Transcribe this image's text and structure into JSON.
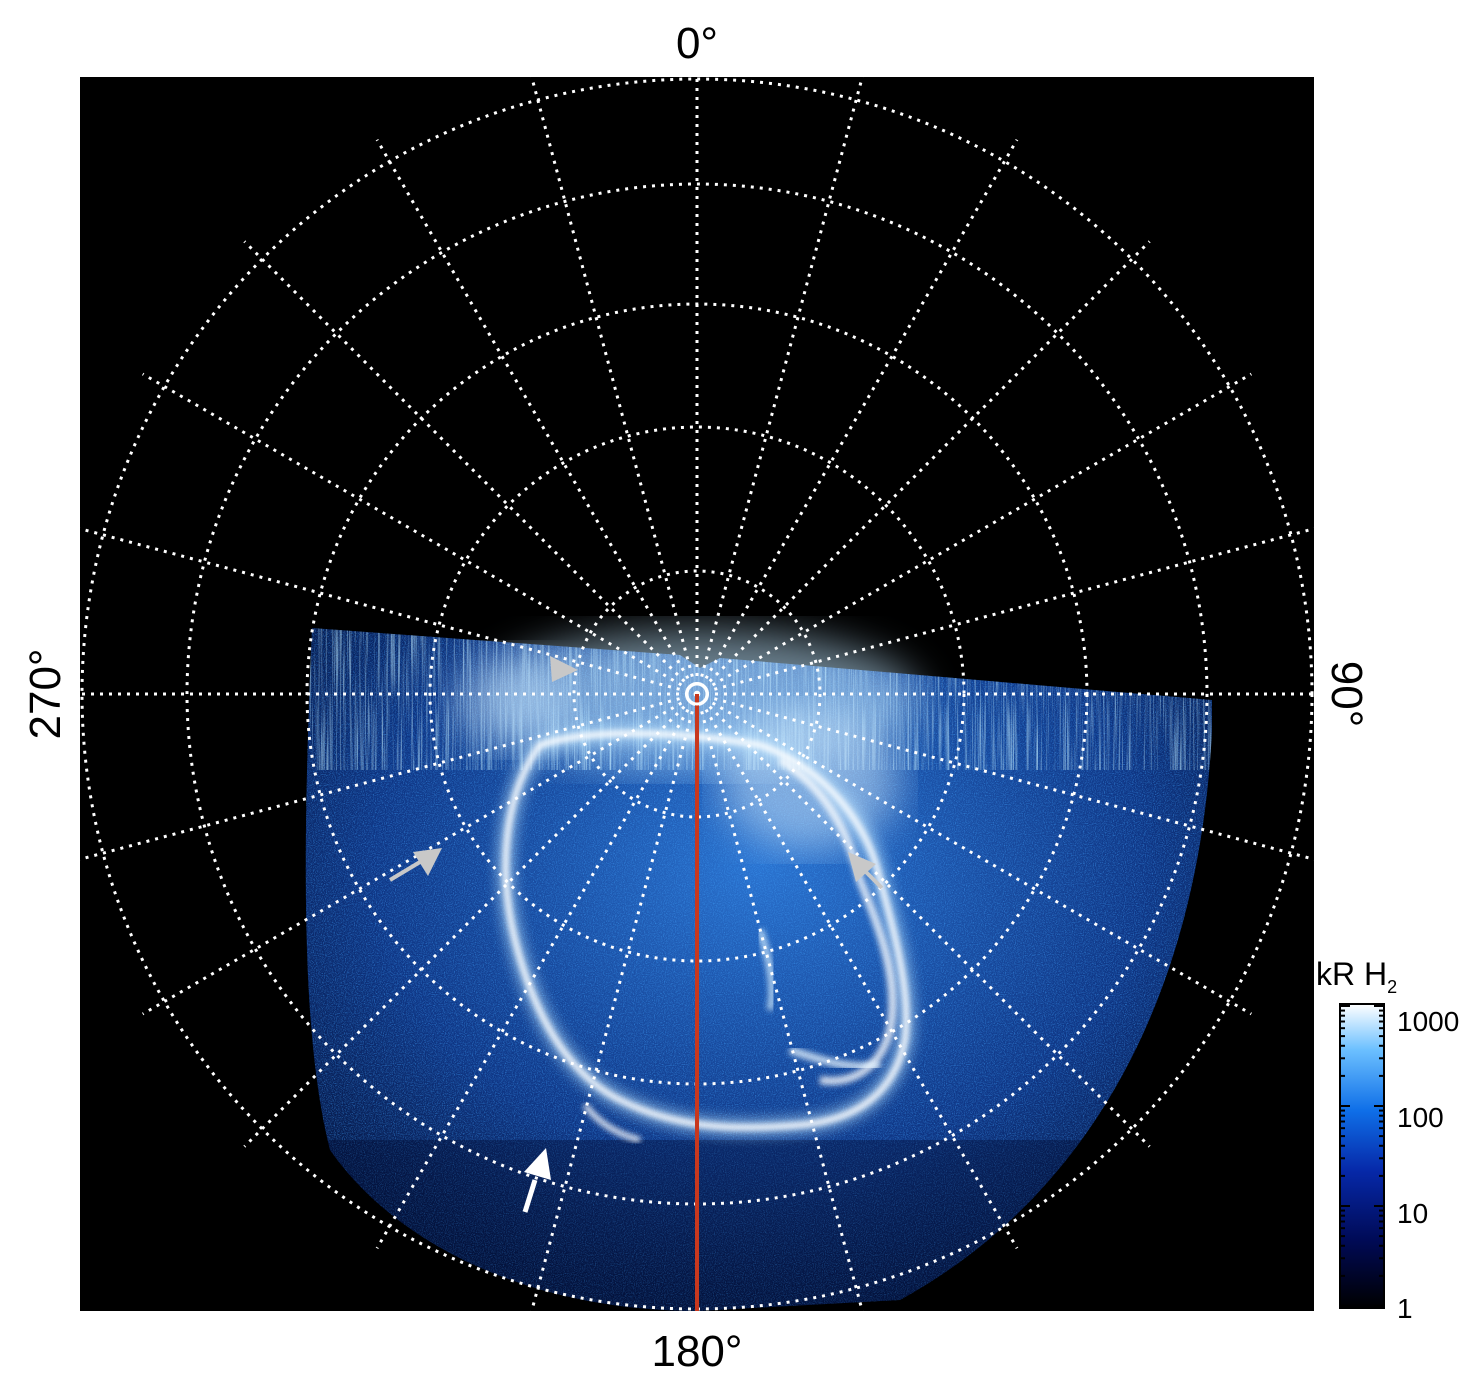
{
  "figure": {
    "type": "polar auroral image",
    "projection": "polar",
    "grid": "on",
    "grid_style": "dotted white",
    "background_color": "#000000",
    "longitude_labels": {
      "top": "0°",
      "right": "90°",
      "bottom": "180°",
      "left": "270°"
    },
    "meridian_line_color": "#c8381e",
    "emission_colors": [
      "#000010",
      "#001f8c",
      "#0a63d6",
      "#39a4ff",
      "#bfe6ff",
      "#ffffff"
    ]
  },
  "colorbar": {
    "title": "kR H",
    "title_subscript": "2",
    "scale": "log",
    "range": [
      1,
      1000
    ],
    "tick_labels": [
      "1000",
      "100",
      "10",
      "1"
    ]
  },
  "annotations": {
    "arrows": [
      {
        "color": "#c8c8c8",
        "name": "arrow-upper-left"
      },
      {
        "color": "#c8c8c8",
        "name": "arrow-left"
      },
      {
        "color": "#c8c8c8",
        "name": "arrow-right"
      },
      {
        "color": "#ffffff",
        "name": "arrow-bottom"
      }
    ]
  }
}
